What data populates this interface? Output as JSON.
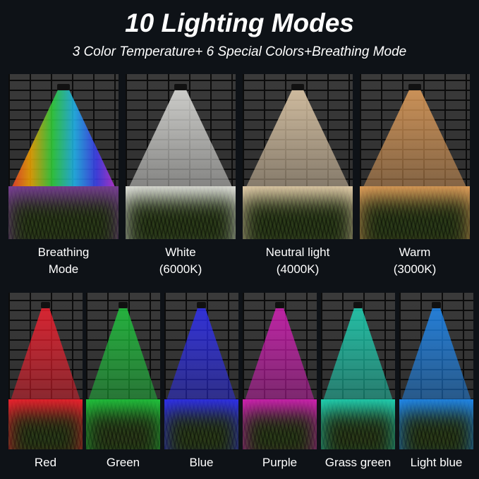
{
  "title": "10 Lighting Modes",
  "subtitle": "3 Color Temperature+ 6 Special Colors+Breathing Mode",
  "top_modes": [
    {
      "label1": "Breathing",
      "label2": "Mode",
      "color": "rainbow"
    },
    {
      "label1": "White",
      "label2": "(6000K)",
      "color": "#f2f2ee"
    },
    {
      "label1": "Neutral light",
      "label2": "(4000K)",
      "color": "#f5dcb8"
    },
    {
      "label1": "Warm",
      "label2": "(3000K)",
      "color": "#f0a860"
    }
  ],
  "bottom_modes": [
    {
      "label": "Red",
      "color": "#ff2030"
    },
    {
      "label": "Green",
      "color": "#20d040"
    },
    {
      "label": "Blue",
      "color": "#3030ff"
    },
    {
      "label": "Purple",
      "color": "#e020c0"
    },
    {
      "label": "Grass green",
      "color": "#20e0c0"
    },
    {
      "label": "Light blue",
      "color": "#2090ff"
    }
  ]
}
